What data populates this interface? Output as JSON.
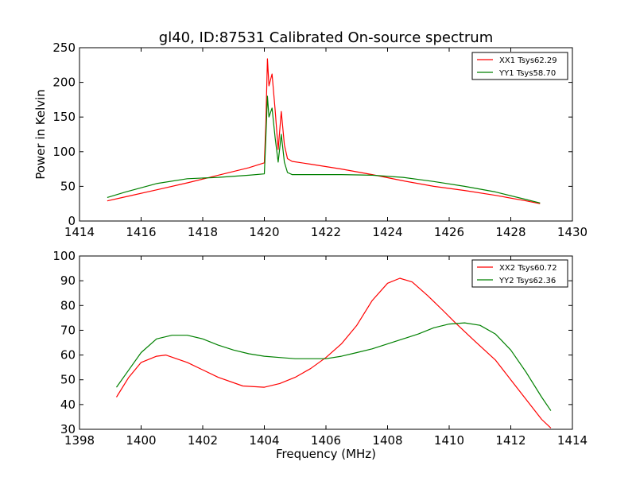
{
  "chart_data": [
    {
      "type": "line",
      "title": "gl40, ID:87531 Calibrated On-source spectrum",
      "xlabel": "",
      "ylabel": "Power in Kelvin",
      "xlim": [
        1414,
        1430
      ],
      "ylim": [
        0,
        250
      ],
      "xticks": [
        "1414",
        "1416",
        "1418",
        "1420",
        "1422",
        "1424",
        "1426",
        "1428",
        "1430"
      ],
      "yticks": [
        "0",
        "50",
        "100",
        "150",
        "200",
        "250"
      ],
      "legend_position": "top-right",
      "series": [
        {
          "name": "XX1 Tsys62.29",
          "color": "#ff0000",
          "points": [
            [
              1414.9,
              29
            ],
            [
              1415.5,
              35
            ],
            [
              1416.5,
              45
            ],
            [
              1417.5,
              55
            ],
            [
              1418.5,
              66
            ],
            [
              1419.5,
              77
            ],
            [
              1420.0,
              84
            ],
            [
              1420.05,
              140
            ],
            [
              1420.1,
              234
            ],
            [
              1420.15,
              195
            ],
            [
              1420.25,
              212
            ],
            [
              1420.35,
              160
            ],
            [
              1420.45,
              103
            ],
            [
              1420.55,
              158
            ],
            [
              1420.65,
              110
            ],
            [
              1420.75,
              90
            ],
            [
              1420.9,
              86
            ],
            [
              1421.5,
              82
            ],
            [
              1422.5,
              75
            ],
            [
              1423.5,
              67
            ],
            [
              1424.5,
              58
            ],
            [
              1425.5,
              50
            ],
            [
              1426.5,
              44
            ],
            [
              1427.5,
              37
            ],
            [
              1428.5,
              29
            ],
            [
              1428.95,
              25
            ]
          ]
        },
        {
          "name": "YY1 Tsys58.70",
          "color": "#008000",
          "points": [
            [
              1414.9,
              34
            ],
            [
              1415.5,
              42
            ],
            [
              1416.5,
              54
            ],
            [
              1417.5,
              61
            ],
            [
              1418.5,
              63
            ],
            [
              1419.5,
              66
            ],
            [
              1420.0,
              68
            ],
            [
              1420.05,
              120
            ],
            [
              1420.1,
              180
            ],
            [
              1420.15,
              150
            ],
            [
              1420.25,
              163
            ],
            [
              1420.35,
              120
            ],
            [
              1420.45,
              85
            ],
            [
              1420.55,
              125
            ],
            [
              1420.65,
              85
            ],
            [
              1420.75,
              70
            ],
            [
              1420.9,
              67
            ],
            [
              1421.5,
              67
            ],
            [
              1422.5,
              67
            ],
            [
              1423.5,
              66
            ],
            [
              1424.5,
              63
            ],
            [
              1425.5,
              57
            ],
            [
              1426.5,
              50
            ],
            [
              1427.5,
              42
            ],
            [
              1428.5,
              31
            ],
            [
              1428.95,
              26
            ]
          ]
        }
      ]
    },
    {
      "type": "line",
      "title": "",
      "xlabel": "Frequency (MHz)",
      "ylabel": "",
      "xlim": [
        1398,
        1414
      ],
      "ylim": [
        30,
        100
      ],
      "xticks": [
        "1398",
        "1400",
        "1402",
        "1404",
        "1406",
        "1408",
        "1410",
        "1412",
        "1414"
      ],
      "yticks": [
        "30",
        "40",
        "50",
        "60",
        "70",
        "80",
        "90",
        "100"
      ],
      "legend_position": "top-right",
      "series": [
        {
          "name": "XX2 Tsys60.72",
          "color": "#ff0000",
          "points": [
            [
              1399.2,
              43
            ],
            [
              1399.6,
              51
            ],
            [
              1400.0,
              57
            ],
            [
              1400.5,
              59.5
            ],
            [
              1400.8,
              60
            ],
            [
              1401.5,
              57
            ],
            [
              1402.5,
              51
            ],
            [
              1403.3,
              47.5
            ],
            [
              1404.0,
              47
            ],
            [
              1404.5,
              48.5
            ],
            [
              1405.0,
              51
            ],
            [
              1405.5,
              54.5
            ],
            [
              1406.0,
              59
            ],
            [
              1406.5,
              64.5
            ],
            [
              1407.0,
              72
            ],
            [
              1407.5,
              82
            ],
            [
              1408.0,
              89
            ],
            [
              1408.4,
              91
            ],
            [
              1408.8,
              89.5
            ],
            [
              1409.3,
              84
            ],
            [
              1409.8,
              78
            ],
            [
              1410.2,
              73
            ],
            [
              1410.8,
              66
            ],
            [
              1411.5,
              58
            ],
            [
              1412.0,
              50
            ],
            [
              1412.5,
              42
            ],
            [
              1413.0,
              34
            ],
            [
              1413.3,
              30.5
            ]
          ]
        },
        {
          "name": "YY2 Tsys62.36",
          "color": "#008000",
          "points": [
            [
              1399.2,
              47
            ],
            [
              1399.6,
              54
            ],
            [
              1400.0,
              61
            ],
            [
              1400.5,
              66.5
            ],
            [
              1401.0,
              68
            ],
            [
              1401.5,
              68
            ],
            [
              1402.0,
              66.5
            ],
            [
              1402.5,
              64
            ],
            [
              1403.0,
              62
            ],
            [
              1403.5,
              60.5
            ],
            [
              1404.0,
              59.5
            ],
            [
              1404.5,
              59
            ],
            [
              1405.0,
              58.5
            ],
            [
              1405.5,
              58.5
            ],
            [
              1406.0,
              58.5
            ],
            [
              1406.5,
              59.5
            ],
            [
              1407.0,
              61
            ],
            [
              1407.5,
              62.5
            ],
            [
              1408.0,
              64.5
            ],
            [
              1408.5,
              66.5
            ],
            [
              1409.0,
              68.5
            ],
            [
              1409.5,
              71
            ],
            [
              1410.0,
              72.5
            ],
            [
              1410.5,
              73
            ],
            [
              1411.0,
              72
            ],
            [
              1411.5,
              68.5
            ],
            [
              1412.0,
              62
            ],
            [
              1412.5,
              53
            ],
            [
              1413.0,
              43
            ],
            [
              1413.3,
              37.5
            ]
          ]
        }
      ]
    }
  ]
}
